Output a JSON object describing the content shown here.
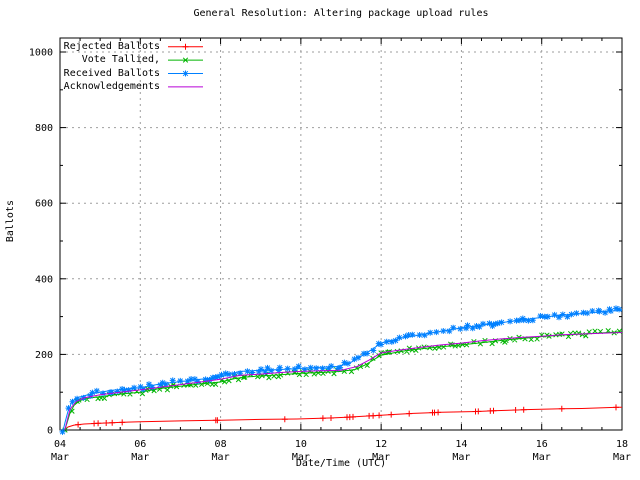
{
  "chart_data": {
    "type": "line",
    "title": "General Resolution: Altering package upload rules",
    "xlabel": "Date/Time (UTC)",
    "ylabel": "Ballots",
    "ylim": [
      0,
      1000
    ],
    "xlim_days": [
      4,
      18
    ],
    "x_month": "Mar",
    "x_major_tick_days": [
      4,
      6,
      8,
      10,
      12,
      14,
      16,
      18
    ],
    "x_grid_days": [
      6,
      8,
      10,
      12,
      14,
      16
    ],
    "y_major_ticks": [
      0,
      200,
      400,
      600,
      800,
      1000
    ],
    "y_minor_step": 100,
    "x_minor_step_days": 0.5,
    "grid": true,
    "grid_color": "#9e9e9e",
    "legend_position": "top-left-inside",
    "series": [
      {
        "name": "Rejected Ballots",
        "color": "#ff0000",
        "marker": "plus",
        "dense": false,
        "x": [
          4.1,
          4.2,
          4.35,
          4.6,
          5.0,
          5.5,
          6.0,
          7.0,
          7.9,
          8.0,
          9.0,
          9.9,
          10.5,
          10.8,
          11.2,
          11.5,
          12.0,
          12.3,
          12.8,
          13.3,
          13.5,
          14.4,
          14.8,
          15.4,
          15.6,
          16.5,
          17.0,
          17.9,
          18.0
        ],
        "y": [
          0,
          8,
          13,
          16,
          18,
          20,
          22,
          24,
          26,
          26,
          28,
          29,
          31,
          32,
          34,
          36,
          39,
          41,
          44,
          46,
          47,
          49,
          51,
          53,
          54,
          56,
          57,
          60,
          60
        ],
        "marker_x": [
          4.45,
          4.85,
          4.95,
          5.15,
          5.3,
          5.55,
          7.88,
          7.92,
          9.6,
          10.55,
          10.75,
          11.15,
          11.22,
          11.3,
          11.7,
          11.8,
          11.95,
          12.25,
          12.7,
          13.28,
          13.33,
          13.42,
          14.35,
          14.42,
          14.72,
          14.8,
          15.35,
          15.55,
          16.5,
          17.85
        ]
      },
      {
        "name": "Vote Tallied,",
        "color": "#00b400",
        "marker": "cross",
        "dense": true,
        "x": [
          4.12,
          4.18,
          4.25,
          4.35,
          4.5,
          4.75,
          5.0,
          5.5,
          6.0,
          6.5,
          7.0,
          7.5,
          8.0,
          8.35,
          8.6,
          9.0,
          9.5,
          10.0,
          10.5,
          11.0,
          11.35,
          11.6,
          11.8,
          12.0,
          12.5,
          13.0,
          13.5,
          14.0,
          14.5,
          15.0,
          15.5,
          16.0,
          16.5,
          17.0,
          17.5,
          18.0
        ],
        "y": [
          0,
          20,
          45,
          65,
          78,
          85,
          88,
          95,
          100,
          110,
          116,
          122,
          127,
          136,
          140,
          143,
          146,
          150,
          152,
          155,
          160,
          172,
          185,
          198,
          208,
          215,
          220,
          225,
          231,
          237,
          242,
          247,
          251,
          254,
          257,
          260
        ]
      },
      {
        "name": "Received Ballots",
        "color": "#0080ff",
        "marker": "star",
        "dense": true,
        "x": [
          4.08,
          4.13,
          4.2,
          4.3,
          4.4,
          4.55,
          4.75,
          5.0,
          5.3,
          5.6,
          6.0,
          6.5,
          7.0,
          7.5,
          8.0,
          8.3,
          8.5,
          9.0,
          9.5,
          10.0,
          10.5,
          10.9,
          11.2,
          11.5,
          11.8,
          12.0,
          12.5,
          13.0,
          13.5,
          14.0,
          14.5,
          15.0,
          15.5,
          16.0,
          16.5,
          17.0,
          17.5,
          18.0
        ],
        "y": [
          0,
          22,
          50,
          75,
          85,
          89,
          95,
          100,
          105,
          108,
          112,
          122,
          128,
          134,
          140,
          150,
          155,
          158,
          160,
          163,
          166,
          168,
          176,
          195,
          215,
          230,
          243,
          252,
          261,
          270,
          277,
          284,
          291,
          298,
          304,
          308,
          313,
          317
        ]
      },
      {
        "name": "Acknowledgements",
        "color": "#b800d8",
        "marker": "none",
        "dense": false,
        "x": [
          4.12,
          4.25,
          4.4,
          4.6,
          5.0,
          5.5,
          6.0,
          6.5,
          7.0,
          7.5,
          8.0,
          8.5,
          9.0,
          9.5,
          10.0,
          10.5,
          11.0,
          11.4,
          11.7,
          12.0,
          12.5,
          13.0,
          13.5,
          14.0,
          14.5,
          15.0,
          15.5,
          16.0,
          16.5,
          17.0,
          17.5,
          18.0
        ],
        "y": [
          0,
          55,
          75,
          85,
          93,
          100,
          106,
          113,
          120,
          127,
          134,
          145,
          148,
          152,
          155,
          157,
          158,
          168,
          185,
          204,
          212,
          219,
          225,
          230,
          236,
          241,
          245,
          248,
          252,
          254,
          256,
          258
        ]
      }
    ]
  }
}
